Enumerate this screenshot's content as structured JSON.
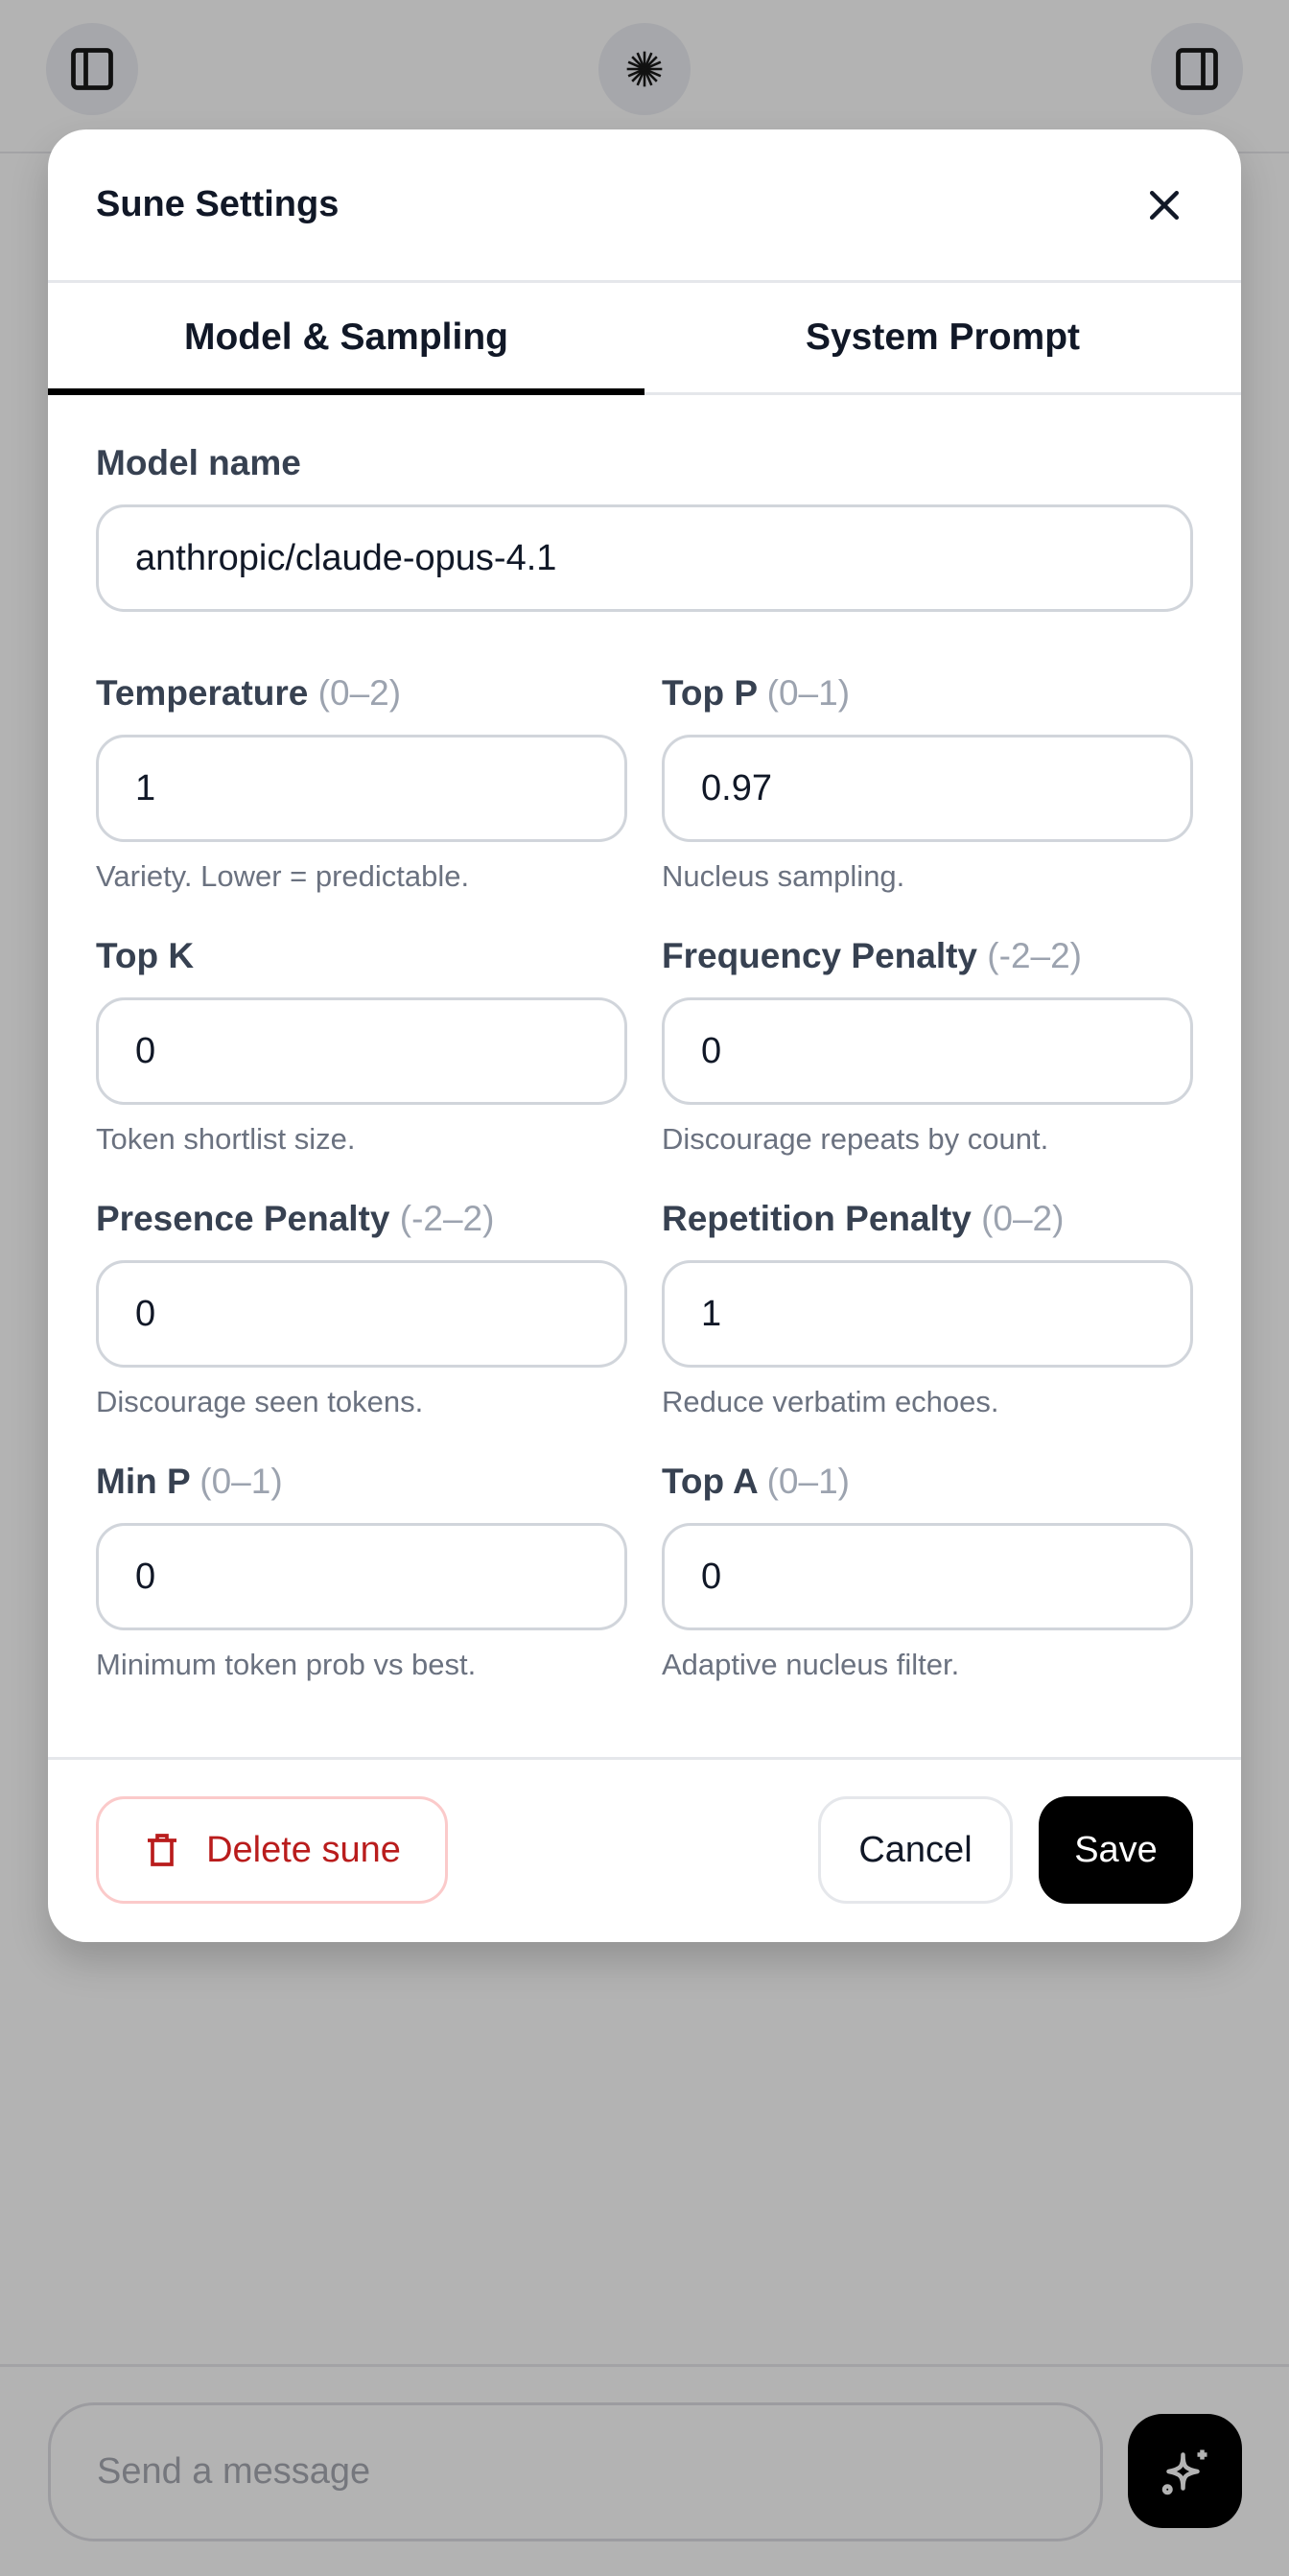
{
  "topbar": {
    "left_icon": "sidebar-left-icon",
    "center_icon": "starburst-icon",
    "right_icon": "sidebar-right-icon"
  },
  "modal": {
    "title": "Sune Settings",
    "close_icon": "close-icon",
    "tabs": [
      {
        "label": "Model & Sampling",
        "active": true
      },
      {
        "label": "System Prompt",
        "active": false
      }
    ],
    "model_name": {
      "label": "Model name",
      "value": "anthropic/claude-opus-4.1"
    },
    "fields": [
      {
        "label": "Temperature",
        "range": "(0–2)",
        "value": "1",
        "help": "Variety. Lower = predictable."
      },
      {
        "label": "Top P",
        "range": "(0–1)",
        "value": "0.97",
        "help": "Nucleus sampling."
      },
      {
        "label": "Top K",
        "range": "",
        "value": "0",
        "help": "Token shortlist size."
      },
      {
        "label": "Frequency Penalty",
        "range": "(-2–2)",
        "value": "0",
        "help": "Discourage repeats by count."
      },
      {
        "label": "Presence Penalty",
        "range": "(-2–2)",
        "value": "0",
        "help": "Discourage seen tokens."
      },
      {
        "label": "Repetition Penalty",
        "range": "(0–2)",
        "value": "1",
        "help": "Reduce verbatim echoes."
      },
      {
        "label": "Min P",
        "range": "(0–1)",
        "value": "0",
        "help": "Minimum token prob vs best."
      },
      {
        "label": "Top A",
        "range": "(0–1)",
        "value": "0",
        "help": "Adaptive nucleus filter."
      }
    ],
    "footer": {
      "delete_label": "Delete sune",
      "cancel_label": "Cancel",
      "save_label": "Save"
    }
  },
  "composer": {
    "placeholder": "Send a message",
    "send_icon": "sparkles-icon"
  },
  "colors": {
    "danger": "#b91c1c",
    "primary": "#000000",
    "overlay": "#b3b3b3"
  }
}
